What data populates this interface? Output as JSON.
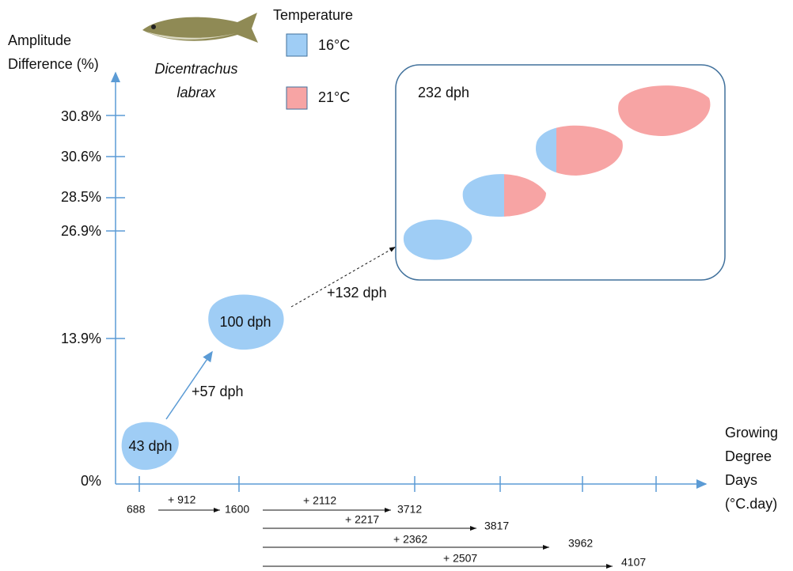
{
  "y_axis": {
    "label_lines": [
      "Amplitude",
      "Difference (%)"
    ],
    "ticks": [
      "30.8%",
      "30.6%",
      "28.5%",
      "26.9%",
      "13.9%",
      "0%"
    ]
  },
  "x_axis": {
    "label_lines": [
      "Growing",
      "Degree",
      "Days",
      "(°C.day)"
    ]
  },
  "species": [
    "Dicentrachus",
    "labrax"
  ],
  "legend": {
    "title": "Temperature",
    "items": [
      "16°C",
      "21°C"
    ]
  },
  "otoliths": [
    "43 dph",
    "100 dph",
    "232 dph"
  ],
  "steps": [
    "+57 dph",
    "+132 dph"
  ],
  "degree_days": {
    "start": "688",
    "first_increment": "+ 912",
    "first_end": "1600",
    "rows": [
      {
        "increment": "+ 2112",
        "end": "3712"
      },
      {
        "increment": "+ 2217",
        "end": "3817"
      },
      {
        "increment": "+ 2362",
        "end": "3962"
      },
      {
        "increment": "+ 2507",
        "end": "4107"
      }
    ]
  }
}
